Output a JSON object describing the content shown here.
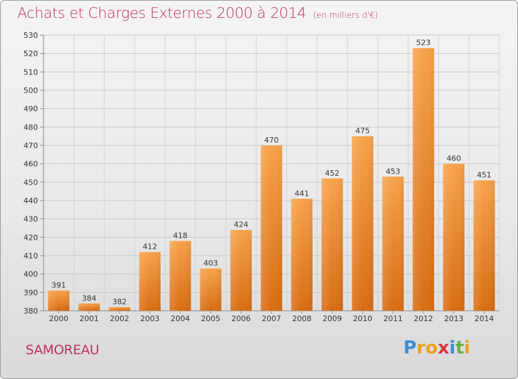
{
  "header": {
    "title": "Achats et Charges Externes 2000 à 2014",
    "subtitle": "(en milliers d'€)"
  },
  "footer": {
    "commune": "SAMOREAU",
    "logo": {
      "letters": [
        "P",
        "r",
        "o",
        "x",
        "i",
        "t",
        "i"
      ],
      "colors": [
        "#3b8fd6",
        "#e8a21e",
        "#e8a21e",
        "#d6363e",
        "#3b8fd6",
        "#63b33c",
        "#e8a21e"
      ]
    }
  },
  "chart_data": {
    "type": "bar",
    "title": "Achats et Charges Externes 2000 à 2014",
    "subtitle": "(en milliers d'€)",
    "categories": [
      "2000",
      "2001",
      "2002",
      "2003",
      "2004",
      "2005",
      "2006",
      "2007",
      "2008",
      "2009",
      "2010",
      "2011",
      "2012",
      "2013",
      "2014"
    ],
    "values": [
      391,
      384,
      382,
      412,
      418,
      403,
      424,
      470,
      441,
      452,
      475,
      453,
      523,
      460,
      451
    ],
    "ylim": [
      380,
      530
    ],
    "yticks": [
      380,
      390,
      400,
      410,
      420,
      430,
      440,
      450,
      460,
      470,
      480,
      490,
      500,
      510,
      520,
      530
    ],
    "grid": true,
    "bar_color": "#f0912a"
  }
}
